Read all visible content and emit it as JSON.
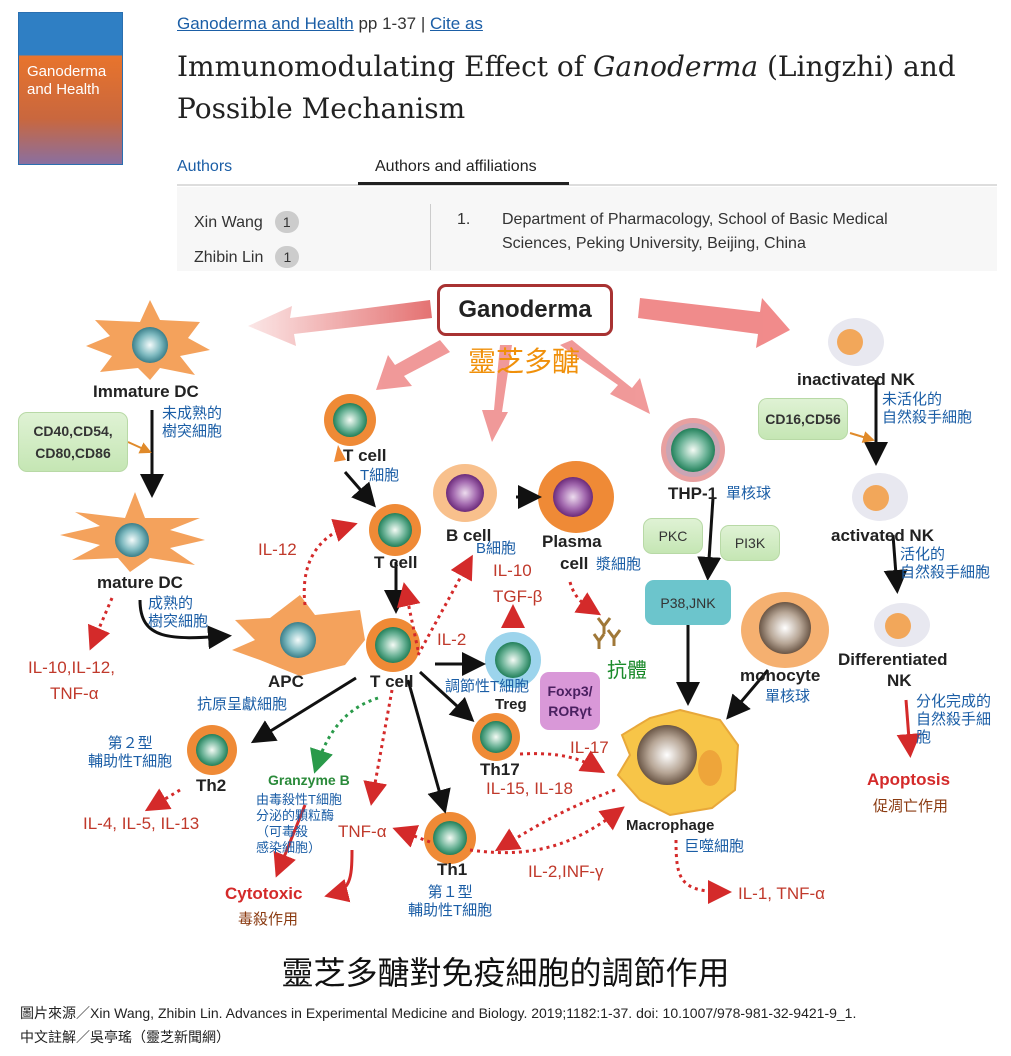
{
  "header": {
    "cover_title": "Ganoderma and Health",
    "book_link": "Ganoderma and Health",
    "pages": " pp 1-37 | ",
    "cite_link": "Cite as",
    "title_pre": "Immunomodulating Effect of ",
    "title_italic": "Ganoderma",
    "title_post": " (Lingzhi) and",
    "title_line2": "Possible Mechanism",
    "tabs": [
      {
        "label": "Authors"
      },
      {
        "label": "Authors and affiliations",
        "active": true
      }
    ],
    "authors": [
      {
        "name": "Xin Wang",
        "badge": "1"
      },
      {
        "name": "Zhibin Lin",
        "badge": "1"
      }
    ],
    "affiliation": {
      "num": "1.",
      "line1": "Department of Pharmacology, School of Basic Medical",
      "line2": "Sciences, Peking University, Beijing, China"
    }
  },
  "diagram": {
    "source": "Ganoderma",
    "source_zh": "靈芝多醣",
    "immature_dc": "Immature DC",
    "immature_dc_zh1": "未成熟的",
    "immature_dc_zh2": "樹突細胞",
    "cd_markers1": "CD40,CD54,",
    "cd_markers2": "CD80,CD86",
    "mature_dc": "mature DC",
    "mature_dc_zh1": "成熟的",
    "mature_dc_zh2": "樹突細胞",
    "dc_cytokines1": "IL-10,IL-12,",
    "dc_cytokines2": "TNF-α",
    "apc": "APC",
    "apc_zh": "抗原呈獻細胞",
    "t_cell": "T cell",
    "t_cell_zh": "T細胞",
    "il12": "IL-12",
    "il2": "IL-2",
    "il10": "IL-10",
    "tgfb": "TGF-β",
    "b_cell": "B cell",
    "b_cell_zh": "B細胞",
    "plasma1": "Plasma",
    "plasma2": "cell",
    "plasma_zh": "漿細胞",
    "antibody_zh": "抗體",
    "treg": "Treg",
    "treg_zh": "調節性T細胞",
    "foxp3_1": "Foxp3/",
    "foxp3_2": "RORγt",
    "th17": "Th17",
    "il17": "IL-17",
    "il15_18": "IL-15, IL-18",
    "th2": "Th2",
    "th2_zh1": "第２型",
    "th2_zh2": "輔助性T細胞",
    "th2_cytokines": "IL-4, IL-5, IL-13",
    "granzyme": "Granzyme B",
    "granzyme_zh": [
      "由毒殺性T細胞",
      "分泌的顆粒酶",
      "（可毒殺",
      "感染細胞）"
    ],
    "tnfa": "TNF-α",
    "cytotoxic": "Cytotoxic",
    "cytotoxic_zh": "毒殺作用",
    "th1": "Th1",
    "th1_zh1": "第１型",
    "th1_zh2": "輔助性T細胞",
    "il2_inf": "IL-2,INF-γ",
    "thp1": "THP-1",
    "thp1_zh": "單核球",
    "pkc": "PKC",
    "pi3k": "PI3K",
    "p38": "P38,JNK",
    "monocyte": "monocyte",
    "monocyte_zh": "單核球",
    "macrophage": "Macrophage",
    "macrophage_zh": "巨噬細胞",
    "mac_cytokines": "IL-1, TNF-α",
    "inactive_nk": "inactivated NK",
    "inactive_nk_zh1": "未活化的",
    "inactive_nk_zh2": "自然殺手細胞",
    "cd16": "CD16,CD56",
    "active_nk": "activated NK",
    "active_nk_zh1": "活化的",
    "active_nk_zh2": "自然殺手細胞",
    "diff_nk1": "Differentiated",
    "diff_nk2": "NK",
    "diff_nk_zh1": "分化完成的",
    "diff_nk_zh2": "自然殺手細",
    "diff_nk_zh3": "胞",
    "apoptosis": "Apoptosis",
    "apoptosis_zh": "促凋亡作用"
  },
  "caption": {
    "title": "靈芝多醣對免疫細胞的調節作用",
    "source": "圖片來源／Xin Wang, Zhibin Lin. Advances in Experimental Medicine and Biology. 2019;1182:1-37. doi: 10.1007/978-981-32-9421-9_1.",
    "annotation": "中文註解／吳亭瑤（靈芝新聞網）"
  },
  "colors": {
    "link": "#1b5ea6",
    "label_zh": "#1b5ea6",
    "cytokine": "#c0392b",
    "source_zh": "#f0900a",
    "antibody_zh": "#1a8a2a",
    "arrow_pink": "#e06a6a"
  }
}
